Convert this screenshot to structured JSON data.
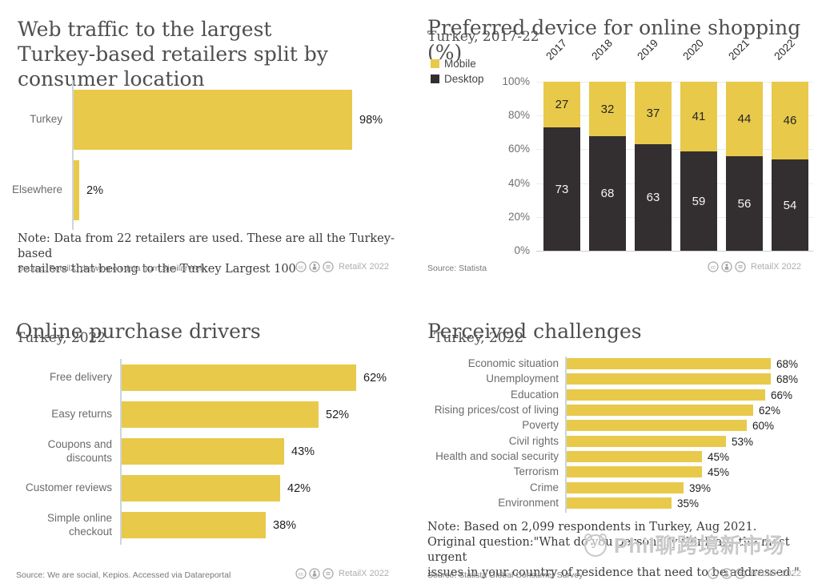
{
  "branding": {
    "label": "RetailX 2022"
  },
  "colors": {
    "bar_yellow": "#e8c94a",
    "bar_dark": "#332f30",
    "axis": "#ccd6de"
  },
  "watermark": {
    "text": "Phil聊跨境新市场",
    "logo": "mascot-circle-logo"
  },
  "chart_data": [
    {
      "id": "web_traffic",
      "type": "bar",
      "orientation": "horizontal",
      "title": "Web traffic to the largest Turkey-based retailers split by consumer location",
      "title_lines": [
        "Web traffic to the largest",
        "Turkey-based retailers split by",
        "consumer location"
      ],
      "categories": [
        "Turkey",
        "Elsewhere"
      ],
      "values": [
        98,
        2
      ],
      "value_labels": [
        "98%",
        "2%"
      ],
      "xlim": [
        0,
        100
      ],
      "grid": false,
      "bar_color": "#e8c94a",
      "note_lines": [
        "Note: Data from 22 retailers are used. These are all the Turkey-based",
        "retailers that belong to the Turkey Largest 100"
      ],
      "source": "Source: RetailX, drawing on data from SimilarWeb"
    },
    {
      "id": "device_preference",
      "type": "bar",
      "stacked": true,
      "orientation": "vertical",
      "title": "Preferred device for online shopping (%)",
      "subtitle": "Turkey, 2017-22",
      "categories": [
        "2017",
        "2018",
        "2019",
        "2020",
        "2021",
        "2022"
      ],
      "series": [
        {
          "name": "Mobile",
          "color": "#e8c94a",
          "values": [
            27,
            32,
            37,
            41,
            44,
            46
          ]
        },
        {
          "name": "Desktop",
          "color": "#332f30",
          "values": [
            73,
            68,
            63,
            59,
            56,
            54
          ]
        }
      ],
      "ylim": [
        0,
        100
      ],
      "y_ticks": [
        "100%",
        "80%",
        "60%",
        "40%",
        "20%",
        "0%"
      ],
      "grid": true,
      "legend_position": "top-left",
      "source": "Source: Statista"
    },
    {
      "id": "purchase_drivers",
      "type": "bar",
      "orientation": "horizontal",
      "title": "Online purchase drivers",
      "subtitle": "Turkey, 2022",
      "categories": [
        "Free delivery",
        "Easy returns",
        "Coupons and discounts",
        "Customer reviews",
        "Simple online checkout"
      ],
      "category_lines": [
        [
          "Free delivery"
        ],
        [
          "Easy returns"
        ],
        [
          "Coupons and",
          "discounts"
        ],
        [
          "Customer reviews"
        ],
        [
          "Simple online",
          "checkout"
        ]
      ],
      "values": [
        62,
        52,
        43,
        42,
        38
      ],
      "value_labels": [
        "62%",
        "52%",
        "43%",
        "42%",
        "38%"
      ],
      "xlim": [
        0,
        100
      ],
      "grid": false,
      "bar_color": "#e8c94a",
      "source": "Source: We are social, Kepios. Accessed via Datareportal"
    },
    {
      "id": "perceived_challenges",
      "type": "bar",
      "orientation": "horizontal",
      "title": "Perceived challenges",
      "subtitle": "Turkey, 2022",
      "categories": [
        "Economic situation",
        "Unemployment",
        "Education",
        "Rising prices/cost of living",
        "Poverty",
        "Civil rights",
        "Health and social security",
        "Terrorism",
        "Crime",
        "Environment"
      ],
      "values": [
        68,
        68,
        66,
        62,
        60,
        53,
        45,
        45,
        39,
        35
      ],
      "value_labels": [
        "68%",
        "68%",
        "66%",
        "62%",
        "60%",
        "53%",
        "45%",
        "45%",
        "39%",
        "35%"
      ],
      "xlim": [
        0,
        100
      ],
      "grid": false,
      "bar_color": "#e8c94a",
      "note_lines": [
        "Note: Based on 2,099 respondents in Turkey, Aug 2021.",
        "Original question:\"What do you personally think are the most urgent",
        "issues in your country of residence that need to be addressed.\""
      ],
      "source": "Source: Statista Global Consumer Survey"
    }
  ]
}
